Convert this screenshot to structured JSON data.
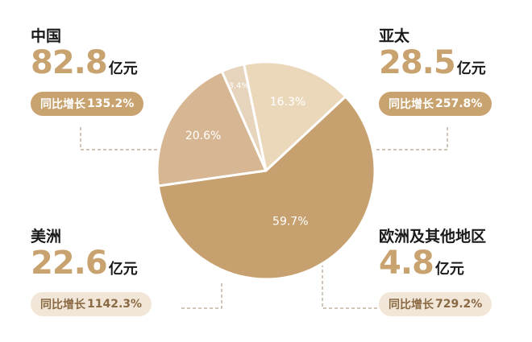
{
  "chart_data": {
    "type": "pie",
    "unit": "亿元",
    "series": [
      {
        "name": "中国",
        "amount": "82.8",
        "share": 59.7,
        "share_label": "59.7%",
        "growth_label": "同比增长",
        "growth": "135.2%",
        "color": "#c6a16f"
      },
      {
        "name": "亚太",
        "amount": "28.5",
        "share": 20.6,
        "share_label": "20.6%",
        "growth_label": "同比增长",
        "growth": "257.8%",
        "color": "#d7b793"
      },
      {
        "name": "欧洲及其他地区",
        "amount": "4.8",
        "share": 3.4,
        "share_label": "3.4%",
        "growth_label": "同比增长",
        "growth": "729.2%",
        "color": "#e6d4bd"
      },
      {
        "name": "美洲",
        "amount": "22.6",
        "share": 16.3,
        "share_label": "16.3%",
        "growth_label": "同比增长",
        "growth": "1142.3%",
        "color": "#ebd8bb"
      }
    ]
  },
  "style": {
    "amount_color": "#c9a36f",
    "pill_bg_dark": "#c9a36f",
    "pill_bg_light": "#f1e6d8",
    "pill_text_dark": "#ffffff",
    "pill_text_light": "#8a6a44",
    "slice_label_color": "#ffffff",
    "leader_color": "#a08a6c"
  }
}
